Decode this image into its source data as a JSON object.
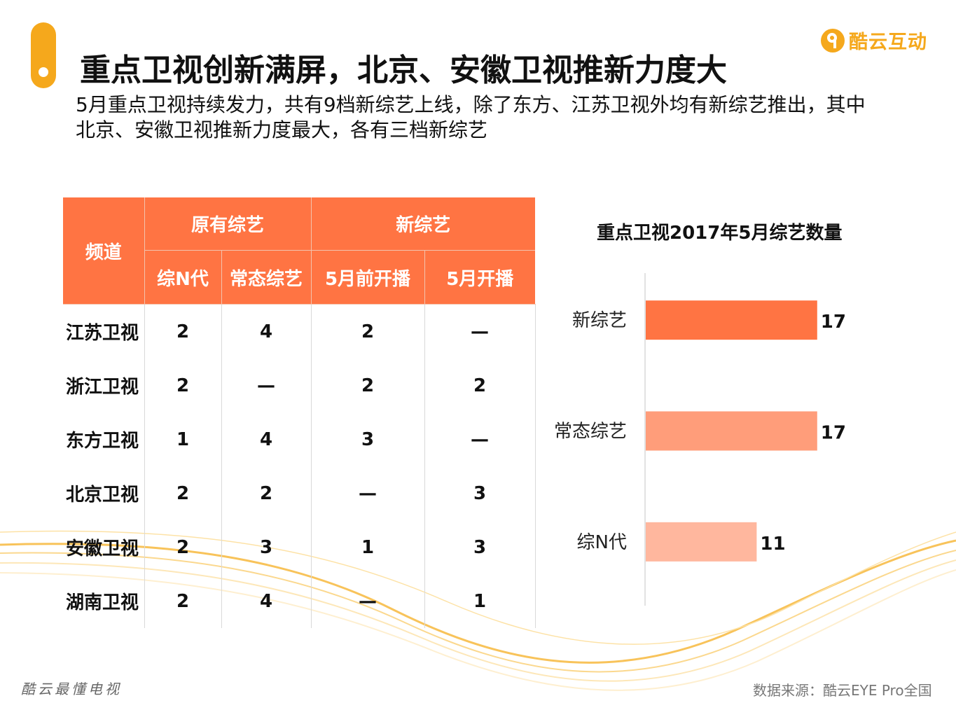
{
  "title": "重点卫视创新满屏，北京、安徽卫视推新力度大",
  "brand": {
    "name": "酷云互动",
    "icon": "brand-logo-icon",
    "color": "#f5a81c"
  },
  "subtitle": {
    "line1": "5月重点卫视持续发力，共有9档新综艺上线，除了东方、江苏卫视外均有新综艺推出，其中",
    "line2": "北京、安徽卫视推新力度最大，各有三档新综艺"
  },
  "table": {
    "channel_header": "频道",
    "group_original": "原有综艺",
    "group_new": "新综艺",
    "columns": [
      "综N代",
      "常态综艺",
      "5月前开播",
      "5月开播"
    ],
    "rows": [
      {
        "channel": "江苏卫视",
        "values": [
          "2",
          "4",
          "2",
          "—"
        ]
      },
      {
        "channel": "浙江卫视",
        "values": [
          "2",
          "—",
          "2",
          "2"
        ]
      },
      {
        "channel": "东方卫视",
        "values": [
          "1",
          "4",
          "3",
          "—"
        ]
      },
      {
        "channel": "北京卫视",
        "values": [
          "2",
          "2",
          "—",
          "3"
        ]
      },
      {
        "channel": "安徽卫视",
        "values": [
          "2",
          "3",
          "1",
          "3"
        ]
      },
      {
        "channel": "湖南卫视",
        "values": [
          "2",
          "4",
          "—",
          "1"
        ]
      }
    ],
    "header_color": "#ff7443"
  },
  "chart_data": {
    "type": "bar",
    "orientation": "horizontal",
    "title": "重点卫视2017年5月综艺数量",
    "categories": [
      "新综艺",
      "常态综艺",
      "综N代"
    ],
    "values": [
      17,
      17,
      11
    ],
    "colors": [
      "#ff7443",
      "#ff9d7a",
      "#ffb79e"
    ],
    "xlim": [
      0,
      20
    ],
    "grid": false,
    "data_labels": true
  },
  "footer": {
    "left": "酷云最懂电视",
    "source": "数据来源：酷云EYE Pro全国"
  }
}
